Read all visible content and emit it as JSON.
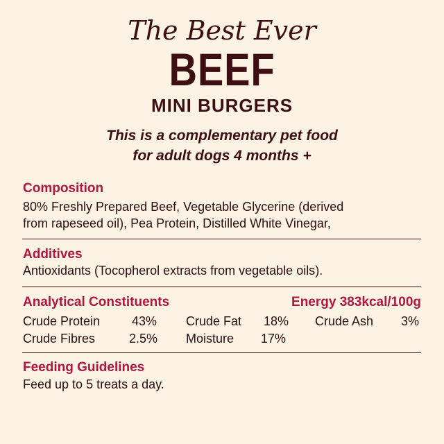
{
  "header": {
    "tagline": "The Best Ever",
    "product": "BEEF",
    "variant": "MINI BURGERS",
    "description_line1": "This is a complementary pet food",
    "description_line2": "for adult dogs 4 months +"
  },
  "composition": {
    "heading": "Composition",
    "line1": "80% Freshly Prepared Beef, Vegetable Glycerine (derived",
    "line2": "from rapeseed oil), Pea Protein, Distilled White Vinegar,"
  },
  "additives": {
    "heading": "Additives",
    "text": "Antioxidants (Tocopherol extracts from vegetable oils)."
  },
  "analytical": {
    "heading": "Analytical Constituents",
    "energy": "Energy 383kcal/100g",
    "items": [
      {
        "label": "Crude Protein",
        "value": "43%"
      },
      {
        "label": "Crude Fat",
        "value": "18%"
      },
      {
        "label": "Crude Ash",
        "value": "3%"
      },
      {
        "label": "Crude Fibres",
        "value": "2.5%"
      },
      {
        "label": "Moisture",
        "value": "17%"
      }
    ]
  },
  "feeding": {
    "heading": "Feeding Guidelines",
    "text": "Feed up to 5 treats a day."
  },
  "colors": {
    "background": "#fdf3e4",
    "brown": "#3d0f12",
    "crimson": "#b0173f"
  }
}
